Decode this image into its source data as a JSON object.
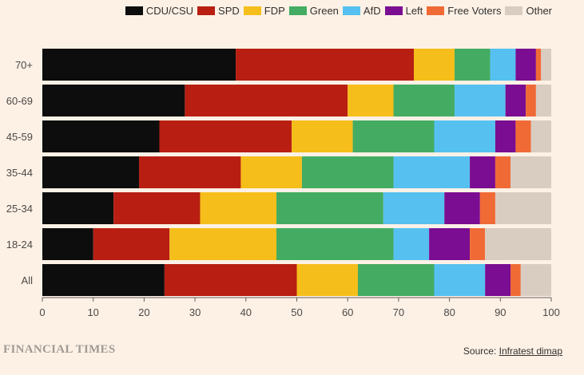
{
  "legend": [
    {
      "name": "CDU/CSU",
      "color": "#0d0d0d"
    },
    {
      "name": "SPD",
      "color": "#b81f12"
    },
    {
      "name": "FDP",
      "color": "#f5be1b"
    },
    {
      "name": "Green",
      "color": "#44ac62"
    },
    {
      "name": "AfD",
      "color": "#56c1f0"
    },
    {
      "name": "Left",
      "color": "#7a0d91"
    },
    {
      "name": "Free Voters",
      "color": "#f06a36"
    },
    {
      "name": "Other",
      "color": "#d9cdc2"
    }
  ],
  "brand": "FINANCIAL TIMES",
  "source": {
    "prefix": "Source: ",
    "name": "Infratest dimap"
  },
  "chart_data": {
    "type": "bar",
    "orientation": "horizontal",
    "stacked": true,
    "categories": [
      "70+",
      "60-69",
      "45-59",
      "35-44",
      "25-34",
      "18-24",
      "All"
    ],
    "series": [
      {
        "name": "CDU/CSU",
        "values": [
          38,
          28,
          23,
          19,
          14,
          10,
          24
        ]
      },
      {
        "name": "SPD",
        "values": [
          35,
          32,
          26,
          20,
          17,
          15,
          26
        ]
      },
      {
        "name": "FDP",
        "values": [
          8,
          9,
          12,
          12,
          15,
          21,
          12
        ]
      },
      {
        "name": "Green",
        "values": [
          7,
          12,
          16,
          18,
          21,
          23,
          15
        ]
      },
      {
        "name": "AfD",
        "values": [
          5,
          10,
          12,
          15,
          12,
          7,
          10
        ]
      },
      {
        "name": "Left",
        "values": [
          4,
          4,
          4,
          5,
          7,
          8,
          5
        ]
      },
      {
        "name": "Free Voters",
        "values": [
          1,
          2,
          3,
          3,
          3,
          3,
          2
        ]
      },
      {
        "name": "Other",
        "values": [
          2,
          3,
          4,
          8,
          11,
          13,
          6
        ]
      }
    ],
    "xlim": [
      0,
      100
    ],
    "xticks": [
      0,
      10,
      20,
      30,
      40,
      50,
      60,
      70,
      80,
      90,
      100
    ],
    "grid": false,
    "legend_position": "top-right"
  }
}
